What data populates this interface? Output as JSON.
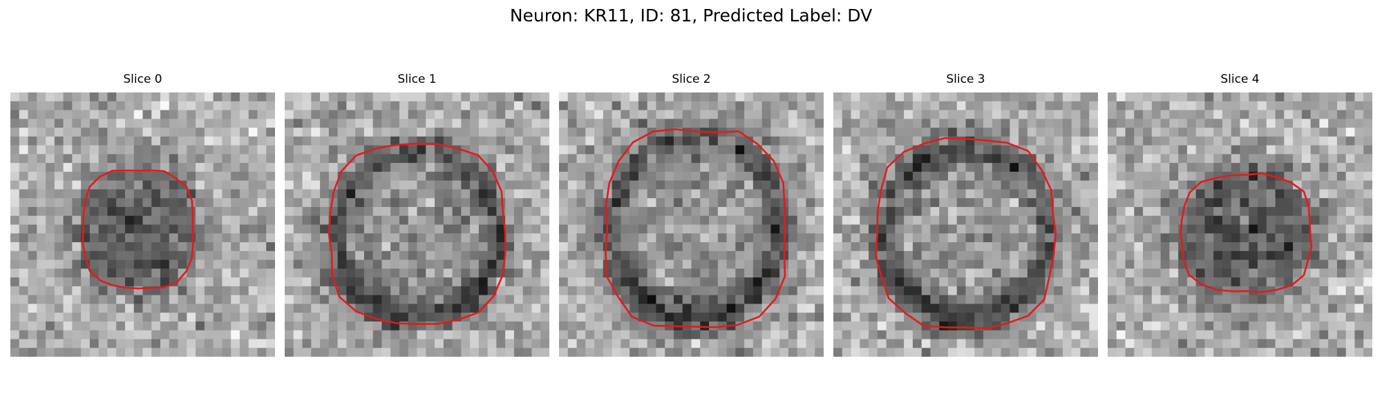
{
  "figure": {
    "title": "Neuron: KR11, ID: 81, Predicted Label: DV",
    "outline_color": "#e41a1c",
    "colormap": "gray"
  },
  "panels": [
    {
      "title": "Slice 0",
      "contrast": "dark-cell"
    },
    {
      "title": "Slice 1",
      "contrast": "ring"
    },
    {
      "title": "Slice 2",
      "contrast": "ring"
    },
    {
      "title": "Slice 3",
      "contrast": "ring"
    },
    {
      "title": "Slice 4",
      "contrast": "dark-cell"
    }
  ]
}
